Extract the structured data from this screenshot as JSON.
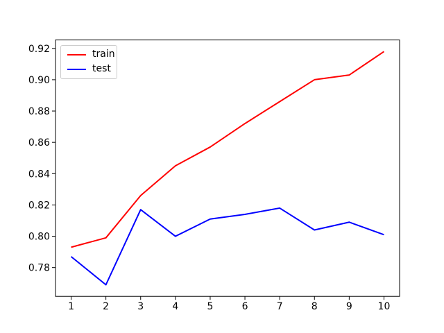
{
  "chart_data": {
    "type": "line",
    "title": "",
    "xlabel": "",
    "ylabel": "",
    "x": [
      1,
      2,
      3,
      4,
      5,
      6,
      7,
      8,
      9,
      10
    ],
    "series": [
      {
        "name": "train",
        "color": "#ff0000",
        "values": [
          0.793,
          0.799,
          0.826,
          0.845,
          0.857,
          0.872,
          0.886,
          0.9,
          0.903,
          0.918
        ]
      },
      {
        "name": "test",
        "color": "#0000ff",
        "values": [
          0.787,
          0.769,
          0.817,
          0.8,
          0.811,
          0.814,
          0.818,
          0.804,
          0.809,
          0.801
        ]
      }
    ],
    "xticks": [
      "1",
      "2",
      "3",
      "4",
      "5",
      "6",
      "7",
      "8",
      "9",
      "10"
    ],
    "yticks": [
      "0.78",
      "0.80",
      "0.82",
      "0.84",
      "0.86",
      "0.88",
      "0.90",
      "0.92"
    ],
    "xlim": [
      0.55,
      10.45
    ],
    "ylim": [
      0.7616,
      0.9254
    ],
    "grid": false,
    "legend": {
      "position": "upper left",
      "entries": [
        "train",
        "test"
      ]
    },
    "colors": {
      "axes": "#000000",
      "tick_label": "#000000",
      "legend_border": "#cccccc",
      "background": "#ffffff"
    }
  }
}
